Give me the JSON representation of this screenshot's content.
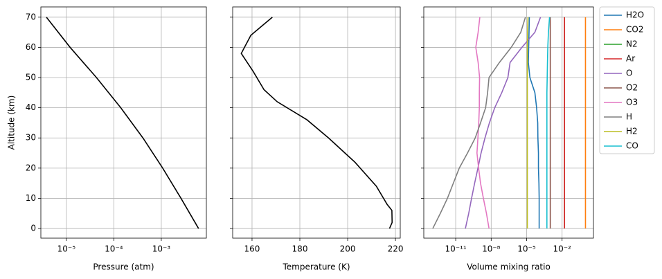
{
  "chart_data": [
    {
      "type": "line",
      "xscale": "log",
      "grid": true,
      "xlabel": "Pressure (atm)",
      "ylabel": "Altitude (km)",
      "xlim": [
        2.9e-06,
        0.0089
      ],
      "xticks": [
        {
          "value": 1e-05,
          "label": "10⁻⁵"
        },
        {
          "value": 0.0001,
          "label": "10⁻⁴"
        },
        {
          "value": 0.001,
          "label": "10⁻³"
        }
      ],
      "ylim": [
        -3.2,
        73.4
      ],
      "yticks": [
        0,
        10,
        20,
        30,
        40,
        50,
        60,
        70
      ],
      "y": [
        0,
        10,
        20,
        30,
        40,
        50,
        60,
        70
      ],
      "series": [
        {
          "color": "#000000",
          "values": [
            0.0061,
            0.0026,
            0.00107,
            0.00041,
            0.00014,
            4.3e-05,
            1.2e-05,
            3.8e-06
          ]
        }
      ]
    },
    {
      "type": "line",
      "grid": true,
      "sharey": true,
      "xlabel": "Temperature (K)",
      "xlim": [
        151.9,
        222
      ],
      "xticks": [
        160,
        180,
        200,
        220
      ],
      "y": [
        0,
        2,
        6,
        8,
        14,
        22,
        30,
        36,
        42,
        46,
        52,
        58,
        64,
        70
      ],
      "series": [
        {
          "color": "#000000",
          "values": [
            217.5,
            218.6,
            218.5,
            216.5,
            212,
            203,
            192,
            183,
            170.5,
            165,
            160.5,
            155.5,
            159.5,
            168.5
          ]
        }
      ]
    },
    {
      "type": "line",
      "xscale": "log",
      "grid": true,
      "sharey": true,
      "legend": "outside right",
      "xlabel": "Volume mixing ratio",
      "xlim": [
        2e-14,
        4.5
      ],
      "xticks": [
        {
          "value": 1e-11,
          "label": "10⁻¹¹"
        },
        {
          "value": 1e-08,
          "label": "10⁻⁸"
        },
        {
          "value": 1e-05,
          "label": "10⁻⁵"
        },
        {
          "value": 0.01,
          "label": "10⁻²"
        }
      ],
      "y": [
        0,
        5,
        10,
        15,
        20,
        25,
        30,
        35,
        40,
        45,
        50,
        55,
        60,
        65,
        70
      ],
      "series": [
        {
          "name": "H2O",
          "color": "#1f77b4",
          "values": [
            0.000115,
            0.000115,
            0.000115,
            0.00011,
            0.0001,
            0.0001,
            9e-05,
            8.7e-05,
            7e-05,
            5e-05,
            1.9e-05,
            1.4e-05,
            1.5e-05,
            1.6e-05,
            1.7e-05
          ]
        },
        {
          "name": "CO2",
          "color": "#ff7f0e",
          "values": [
            0.95,
            0.95,
            0.95,
            0.95,
            0.95,
            0.95,
            0.95,
            0.95,
            0.95,
            0.95,
            0.95,
            0.95,
            0.95,
            0.95,
            0.95
          ]
        },
        {
          "name": "N2",
          "color": "#2ca02c",
          "values": [
            0.016,
            0.016,
            0.016,
            0.016,
            0.016,
            0.016,
            0.016,
            0.016,
            0.016,
            0.016,
            0.016,
            0.016,
            0.016,
            0.016,
            0.016
          ]
        },
        {
          "name": "Ar",
          "color": "#d62728",
          "values": [
            0.016,
            0.016,
            0.016,
            0.016,
            0.016,
            0.016,
            0.016,
            0.016,
            0.016,
            0.016,
            0.016,
            0.016,
            0.016,
            0.016,
            0.016
          ]
        },
        {
          "name": "O",
          "color": "#9467bd",
          "values": [
            6.6e-11,
            1.26e-10,
            2.2e-10,
            4e-10,
            7.6e-10,
            1.4e-09,
            3e-09,
            7.1e-09,
            2e-08,
            7.9e-08,
            2.6e-07,
            4e-07,
            4e-06,
            5e-05,
            0.00015
          ]
        },
        {
          "name": "O2",
          "color": "#8c564b",
          "values": [
            0.001,
            0.001,
            0.001,
            0.001,
            0.001,
            0.001,
            0.001,
            0.001,
            0.001,
            0.001,
            0.001,
            0.001,
            0.001,
            0.001,
            0.001
          ]
        },
        {
          "name": "O3",
          "color": "#e377c2",
          "values": [
            6.6e-09,
            4e-09,
            2.2e-09,
            1.26e-09,
            8.7e-10,
            6.3e-10,
            7.6e-10,
            8.9e-10,
            1e-09,
            1e-09,
            1.05e-09,
            7.9e-10,
            5e-10,
            7.9e-10,
            1.1e-09
          ]
        },
        {
          "name": "H",
          "color": "#7f7f7f",
          "values": [
            1.15e-13,
            5e-13,
            2e-12,
            6.3e-12,
            2e-11,
            1e-10,
            4.5e-10,
            1.26e-09,
            3.4e-09,
            5e-09,
            6.6e-09,
            5e-08,
            5e-07,
            3.2e-06,
            7.9e-06
          ]
        },
        {
          "name": "H2",
          "color": "#bcbd22",
          "values": [
            1.15e-05,
            1.15e-05,
            1.15e-05,
            1.15e-05,
            1.15e-05,
            1.15e-05,
            1.15e-05,
            1.15e-05,
            1.15e-05,
            1.15e-05,
            1.15e-05,
            1.15e-05,
            1.15e-05,
            1.2e-05,
            1.3e-05
          ]
        },
        {
          "name": "CO",
          "color": "#17becf",
          "values": [
            0.00052,
            0.00052,
            0.00052,
            0.00052,
            0.00052,
            0.00052,
            0.00052,
            0.00052,
            0.00052,
            0.00052,
            0.00055,
            0.00058,
            0.00062,
            0.0007,
            0.00087
          ]
        }
      ]
    }
  ]
}
